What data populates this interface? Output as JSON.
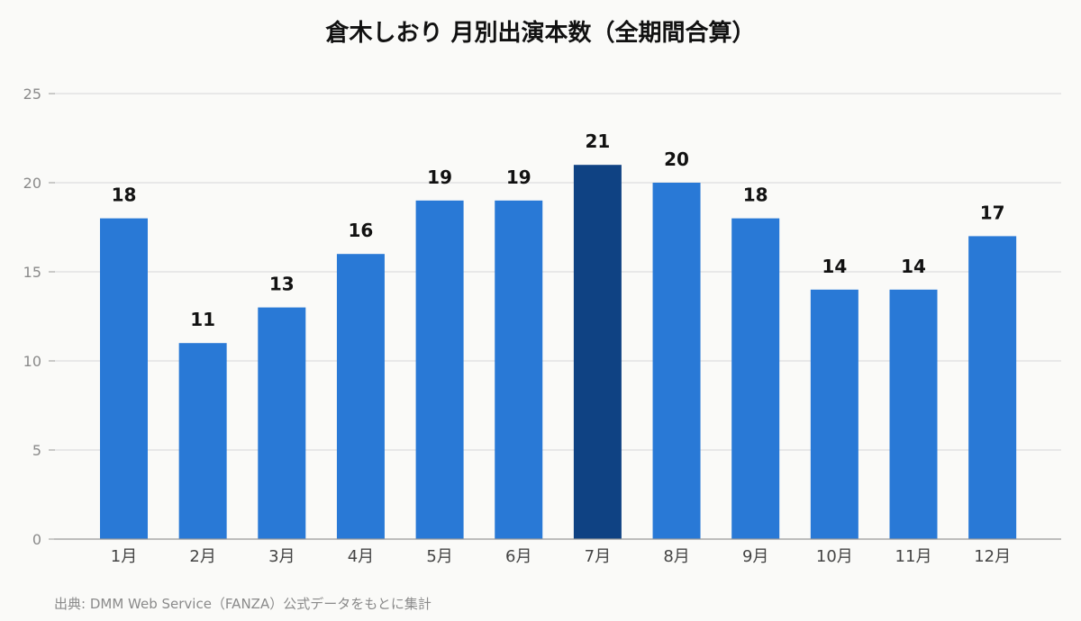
{
  "chart_data": {
    "type": "bar",
    "title": "倉木しおり 月別出演本数（全期間合算）",
    "categories": [
      "1月",
      "2月",
      "3月",
      "4月",
      "5月",
      "6月",
      "7月",
      "8月",
      "9月",
      "10月",
      "11月",
      "12月"
    ],
    "values": [
      18,
      11,
      13,
      16,
      19,
      19,
      21,
      20,
      18,
      14,
      14,
      17
    ],
    "xlabel": "",
    "ylabel": "",
    "ylim": [
      0,
      25
    ],
    "yticks": [
      0,
      5,
      10,
      15,
      20,
      25
    ],
    "grid": true,
    "legend": "none",
    "colors": {
      "bar": "#2979d6",
      "highlight": "#0f4283",
      "grid": "#dddddd",
      "axis": "#999999"
    },
    "highlight_index": 6,
    "source": "出典: DMM Web Service（FANZA）公式データをもとに集計"
  }
}
